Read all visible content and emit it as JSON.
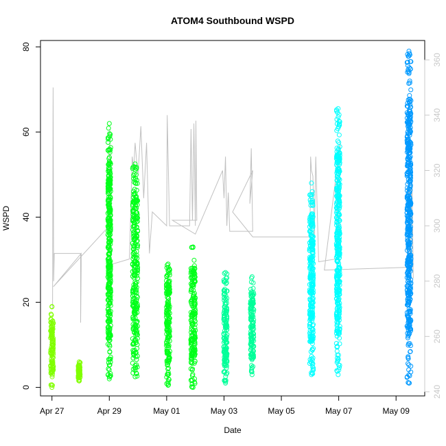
{
  "chart_data": {
    "type": "scatter",
    "title": "ATOM4 Southbound WSPD",
    "xlabel": "Date",
    "ylabel": "WSPD",
    "x_ticks": [
      "Apr 27",
      "Apr 29",
      "May 01",
      "May 03",
      "May 05",
      "May 07",
      "May 09"
    ],
    "y_ticks": [
      0,
      20,
      40,
      60,
      80
    ],
    "y_right_ticks": [
      240,
      260,
      280,
      300,
      320,
      340,
      360
    ],
    "xlim": [
      -0.4,
      13.0
    ],
    "ylim": [
      -2.0,
      81.5
    ],
    "y_right_lim": [
      238.5,
      367.0
    ],
    "grid": false,
    "series": [
      {
        "kind": "points",
        "colors": [
          "#80ff00",
          "#00ff19",
          "#00ff99",
          "#00ffff",
          "#0099ff"
        ],
        "clusters": [
          {
            "x": 0.0,
            "width": 0.1,
            "ymin": 0.0,
            "ymax": 19.0,
            "color": "#80ff00"
          },
          {
            "x": 0.95,
            "width": 0.07,
            "ymin": 1.5,
            "ymax": 6.0,
            "color": "#80ff00"
          },
          {
            "x": 2.0,
            "width": 0.1,
            "ymin": 2.0,
            "ymax": 62.0,
            "color": "#00ff19"
          },
          {
            "x": 2.9,
            "width": 0.18,
            "ymin": 2.5,
            "ymax": 52.5,
            "color": "#00ff19"
          },
          {
            "x": 4.05,
            "width": 0.12,
            "ymin": 0.5,
            "ymax": 29.0,
            "color": "#00ff19"
          },
          {
            "x": 4.92,
            "width": 0.16,
            "ymin": 0.0,
            "ymax": 33.0,
            "color": "#00ff19"
          },
          {
            "x": 6.05,
            "width": 0.12,
            "ymin": 1.0,
            "ymax": 27.0,
            "color": "#00ff99"
          },
          {
            "x": 6.98,
            "width": 0.12,
            "ymin": 3.0,
            "ymax": 26.0,
            "color": "#00ff99"
          },
          {
            "x": 9.05,
            "width": 0.13,
            "ymin": 3.0,
            "ymax": 48.0,
            "color": "#00ffff"
          },
          {
            "x": 9.98,
            "width": 0.12,
            "ymin": 3.0,
            "ymax": 65.5,
            "color": "#00ffff"
          },
          {
            "x": 12.45,
            "width": 0.14,
            "ymin": 1.0,
            "ymax": 79.0,
            "color": "#0099ff"
          }
        ]
      },
      {
        "kind": "line",
        "axis": "right",
        "color": "#c0c0c0",
        "x": [
          0.02,
          0.04,
          0.06,
          0.08,
          1.0,
          1.0,
          1.02,
          1.02,
          0.05,
          2.0,
          2.02,
          2.06,
          2.06,
          2.7,
          2.8,
          2.85,
          2.9,
          3.0,
          3.1,
          3.2,
          3.3,
          3.4,
          3.5,
          4.0,
          4.02,
          4.1,
          4.2,
          4.5,
          4.8,
          4.85,
          4.9,
          4.95,
          5.0,
          5.02,
          5.05,
          4.95,
          4.2,
          5.0,
          5.95,
          6.0,
          6.05,
          6.1,
          6.15,
          6.2,
          7.0,
          6.95,
          6.9,
          7.0,
          6.3,
          7.0,
          9.0,
          9.02,
          9.05,
          9.1,
          9.15,
          9.2,
          9.3,
          9.9,
          9.95,
          10.0,
          10.05,
          9.5,
          12.4,
          12.45,
          12.5,
          12.55,
          12.6
        ],
        "y": [
          270,
          350,
          280,
          290,
          290,
          265,
          285,
          290,
          278,
          300,
          335,
          290,
          286,
          288,
          325,
          320,
          330,
          318,
          336,
          310,
          330,
          290,
          305,
          300,
          340,
          300,
          300,
          300,
          300,
          335,
          302,
          337,
          300,
          338,
          302,
          302,
          302,
          297,
          320,
          310,
          325,
          300,
          312,
          298,
          298,
          328,
          308,
          320,
          305,
          296,
          296,
          325,
          320,
          318,
          296,
          325,
          287,
          288,
          316,
          290,
          330,
          284,
          285,
          322,
          280,
          320,
          281
        ]
      }
    ]
  }
}
